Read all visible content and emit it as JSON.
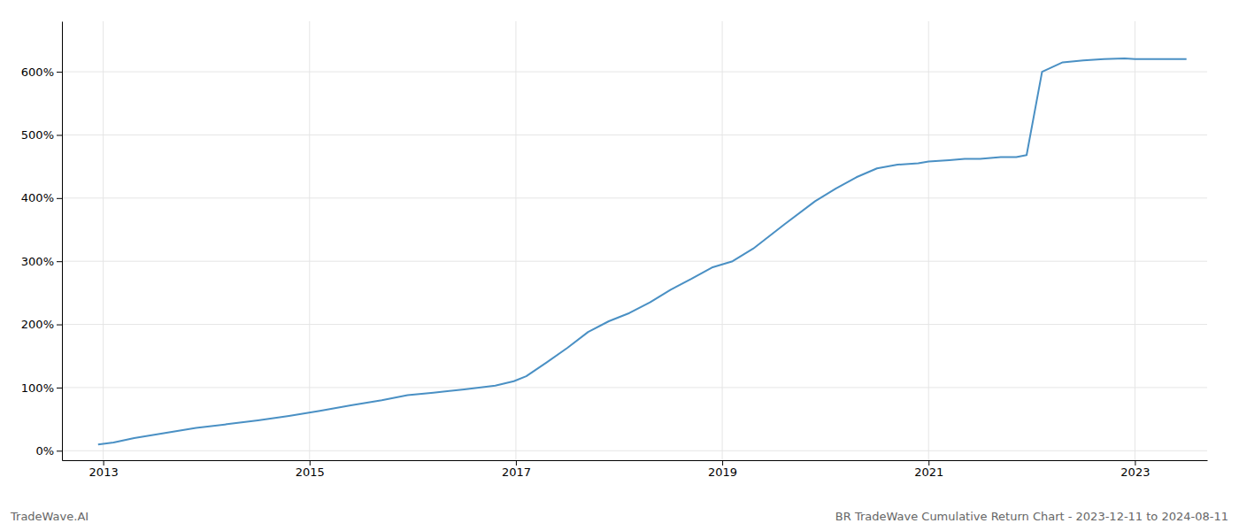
{
  "chart_data": {
    "type": "line",
    "title": "BR TradeWave Cumulative Return Chart - 2023-12-11 to 2024-08-11",
    "annotations": [
      "TradeWave.AI"
    ],
    "color": "#4a90c4",
    "grid": true,
    "x": [
      2012.95,
      2013.1,
      2013.3,
      2013.6,
      2013.9,
      2014.2,
      2014.5,
      2014.8,
      2015.1,
      2015.4,
      2015.7,
      2015.95,
      2016.2,
      2016.5,
      2016.8,
      2016.98,
      2017.1,
      2017.3,
      2017.5,
      2017.7,
      2017.9,
      2018.1,
      2018.3,
      2018.5,
      2018.7,
      2018.9,
      2019.1,
      2019.3,
      2019.6,
      2019.9,
      2020.1,
      2020.3,
      2020.5,
      2020.7,
      2020.9,
      2021.0,
      2021.2,
      2021.35,
      2021.5,
      2021.7,
      2021.85,
      2021.95,
      2022.1,
      2022.3,
      2022.5,
      2022.7,
      2022.9,
      2023.0,
      2023.3,
      2023.5
    ],
    "values": [
      10,
      13,
      20,
      28,
      36,
      42,
      48,
      55,
      63,
      72,
      80,
      88,
      92,
      97,
      103,
      110,
      118,
      140,
      163,
      188,
      205,
      218,
      235,
      255,
      272,
      290,
      300,
      320,
      358,
      395,
      415,
      433,
      447,
      453,
      455,
      458,
      460,
      462,
      462,
      465,
      465,
      468,
      600,
      615,
      618,
      620,
      621,
      620,
      620,
      620
    ],
    "xlim": [
      2012.6,
      2023.7
    ],
    "ylim": [
      -15,
      680
    ],
    "xticks": [
      2013,
      2015,
      2017,
      2019,
      2021,
      2023
    ],
    "yticks": [
      {
        "value": 0,
        "label": "0%"
      },
      {
        "value": 100,
        "label": "100%"
      },
      {
        "value": 200,
        "label": "200%"
      },
      {
        "value": 300,
        "label": "300%"
      },
      {
        "value": 400,
        "label": "400%"
      },
      {
        "value": 500,
        "label": "500%"
      },
      {
        "value": 600,
        "label": "600%"
      }
    ]
  }
}
